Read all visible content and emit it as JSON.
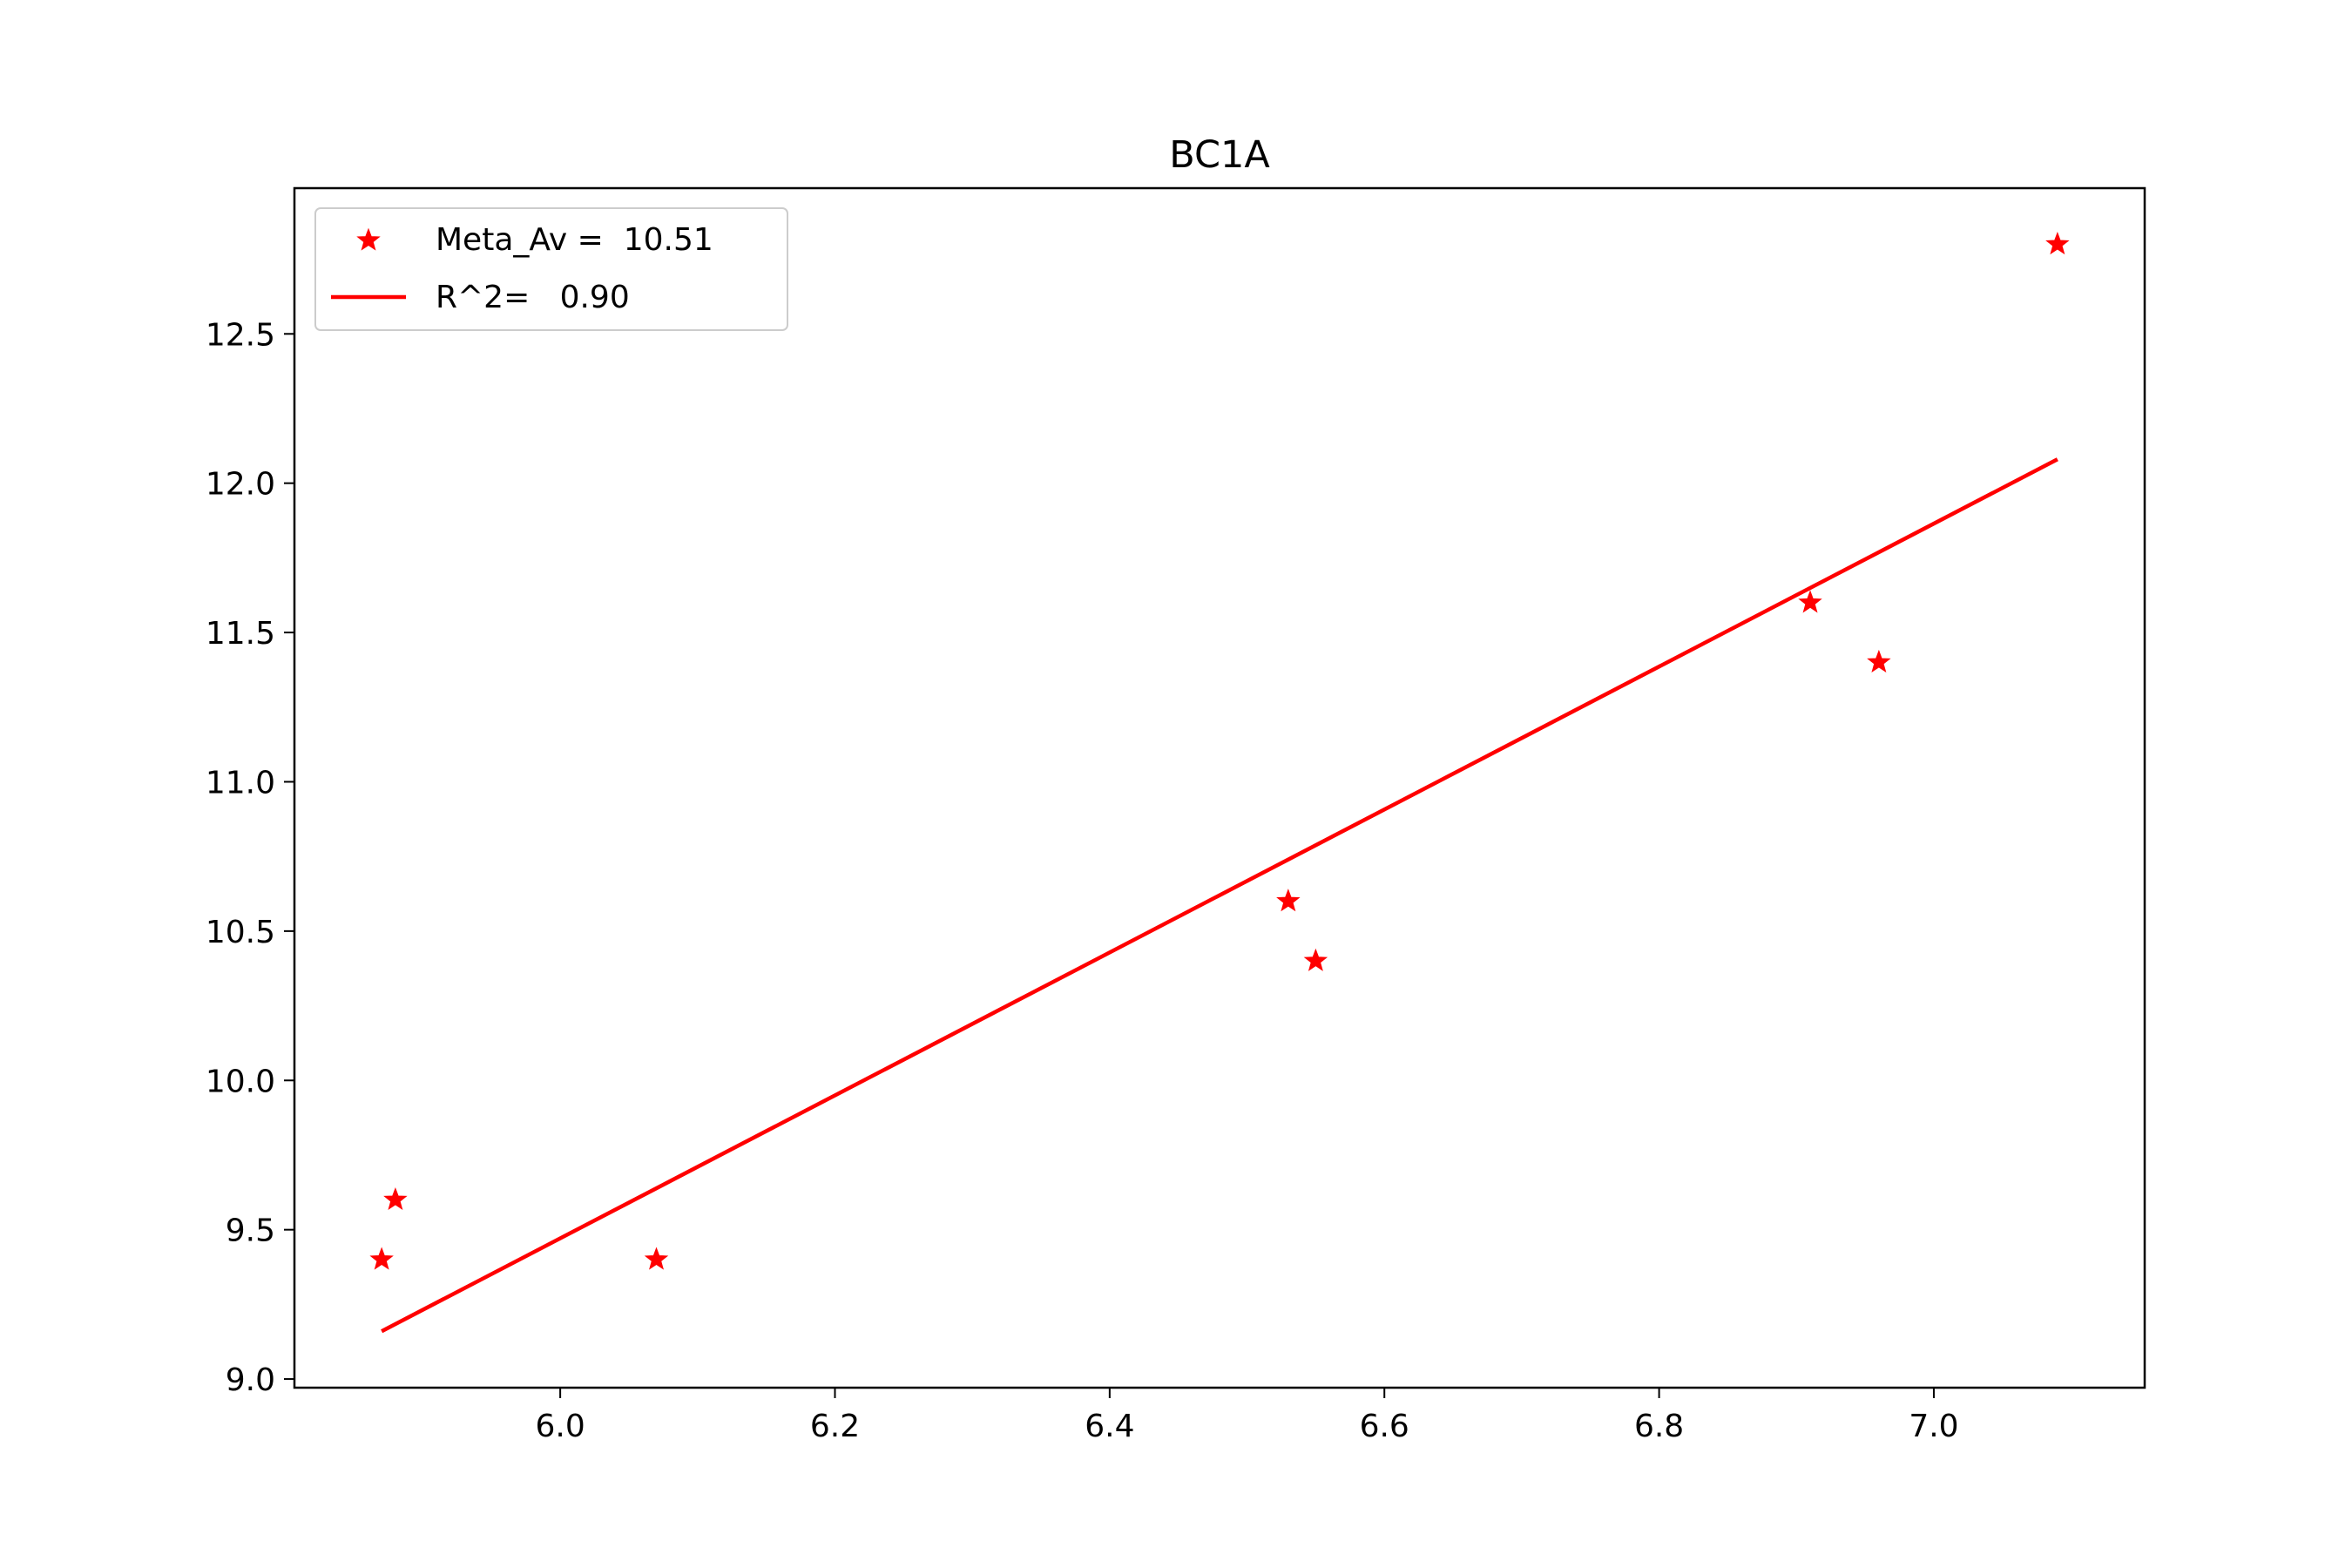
{
  "chart_data": {
    "type": "scatter",
    "title": "BC1A",
    "xlabel": "",
    "ylabel": "",
    "xlim": [
      5.8065,
      7.1535
    ],
    "ylim": [
      8.971,
      12.988
    ],
    "x_ticks": [
      6.0,
      6.2,
      6.4,
      6.6,
      6.8,
      7.0
    ],
    "x_tick_labels": [
      "6.0",
      "6.2",
      "6.4",
      "6.6",
      "6.8",
      "7.0"
    ],
    "y_ticks": [
      9.0,
      9.5,
      10.0,
      10.5,
      11.0,
      11.5,
      12.0,
      12.5
    ],
    "y_tick_labels": [
      "9.0",
      "9.5",
      "10.0",
      "10.5",
      "11.0",
      "11.5",
      "12.0",
      "12.5"
    ],
    "grid": false,
    "legend_position": "top-left",
    "series": [
      {
        "name": "Meta_Av =  10.51",
        "kind": "scatter",
        "marker": "star",
        "color": "#ff0000",
        "x": [
          5.87,
          5.88,
          6.07,
          6.53,
          6.55,
          6.91,
          6.96,
          7.09
        ],
        "y": [
          9.4,
          9.6,
          9.4,
          10.6,
          10.4,
          11.6,
          11.4,
          12.8
        ]
      },
      {
        "name": "R^2=   0.90",
        "kind": "line",
        "color": "#ff0000",
        "x": [
          5.87,
          7.09
        ],
        "y": [
          9.16,
          12.08
        ]
      }
    ]
  }
}
